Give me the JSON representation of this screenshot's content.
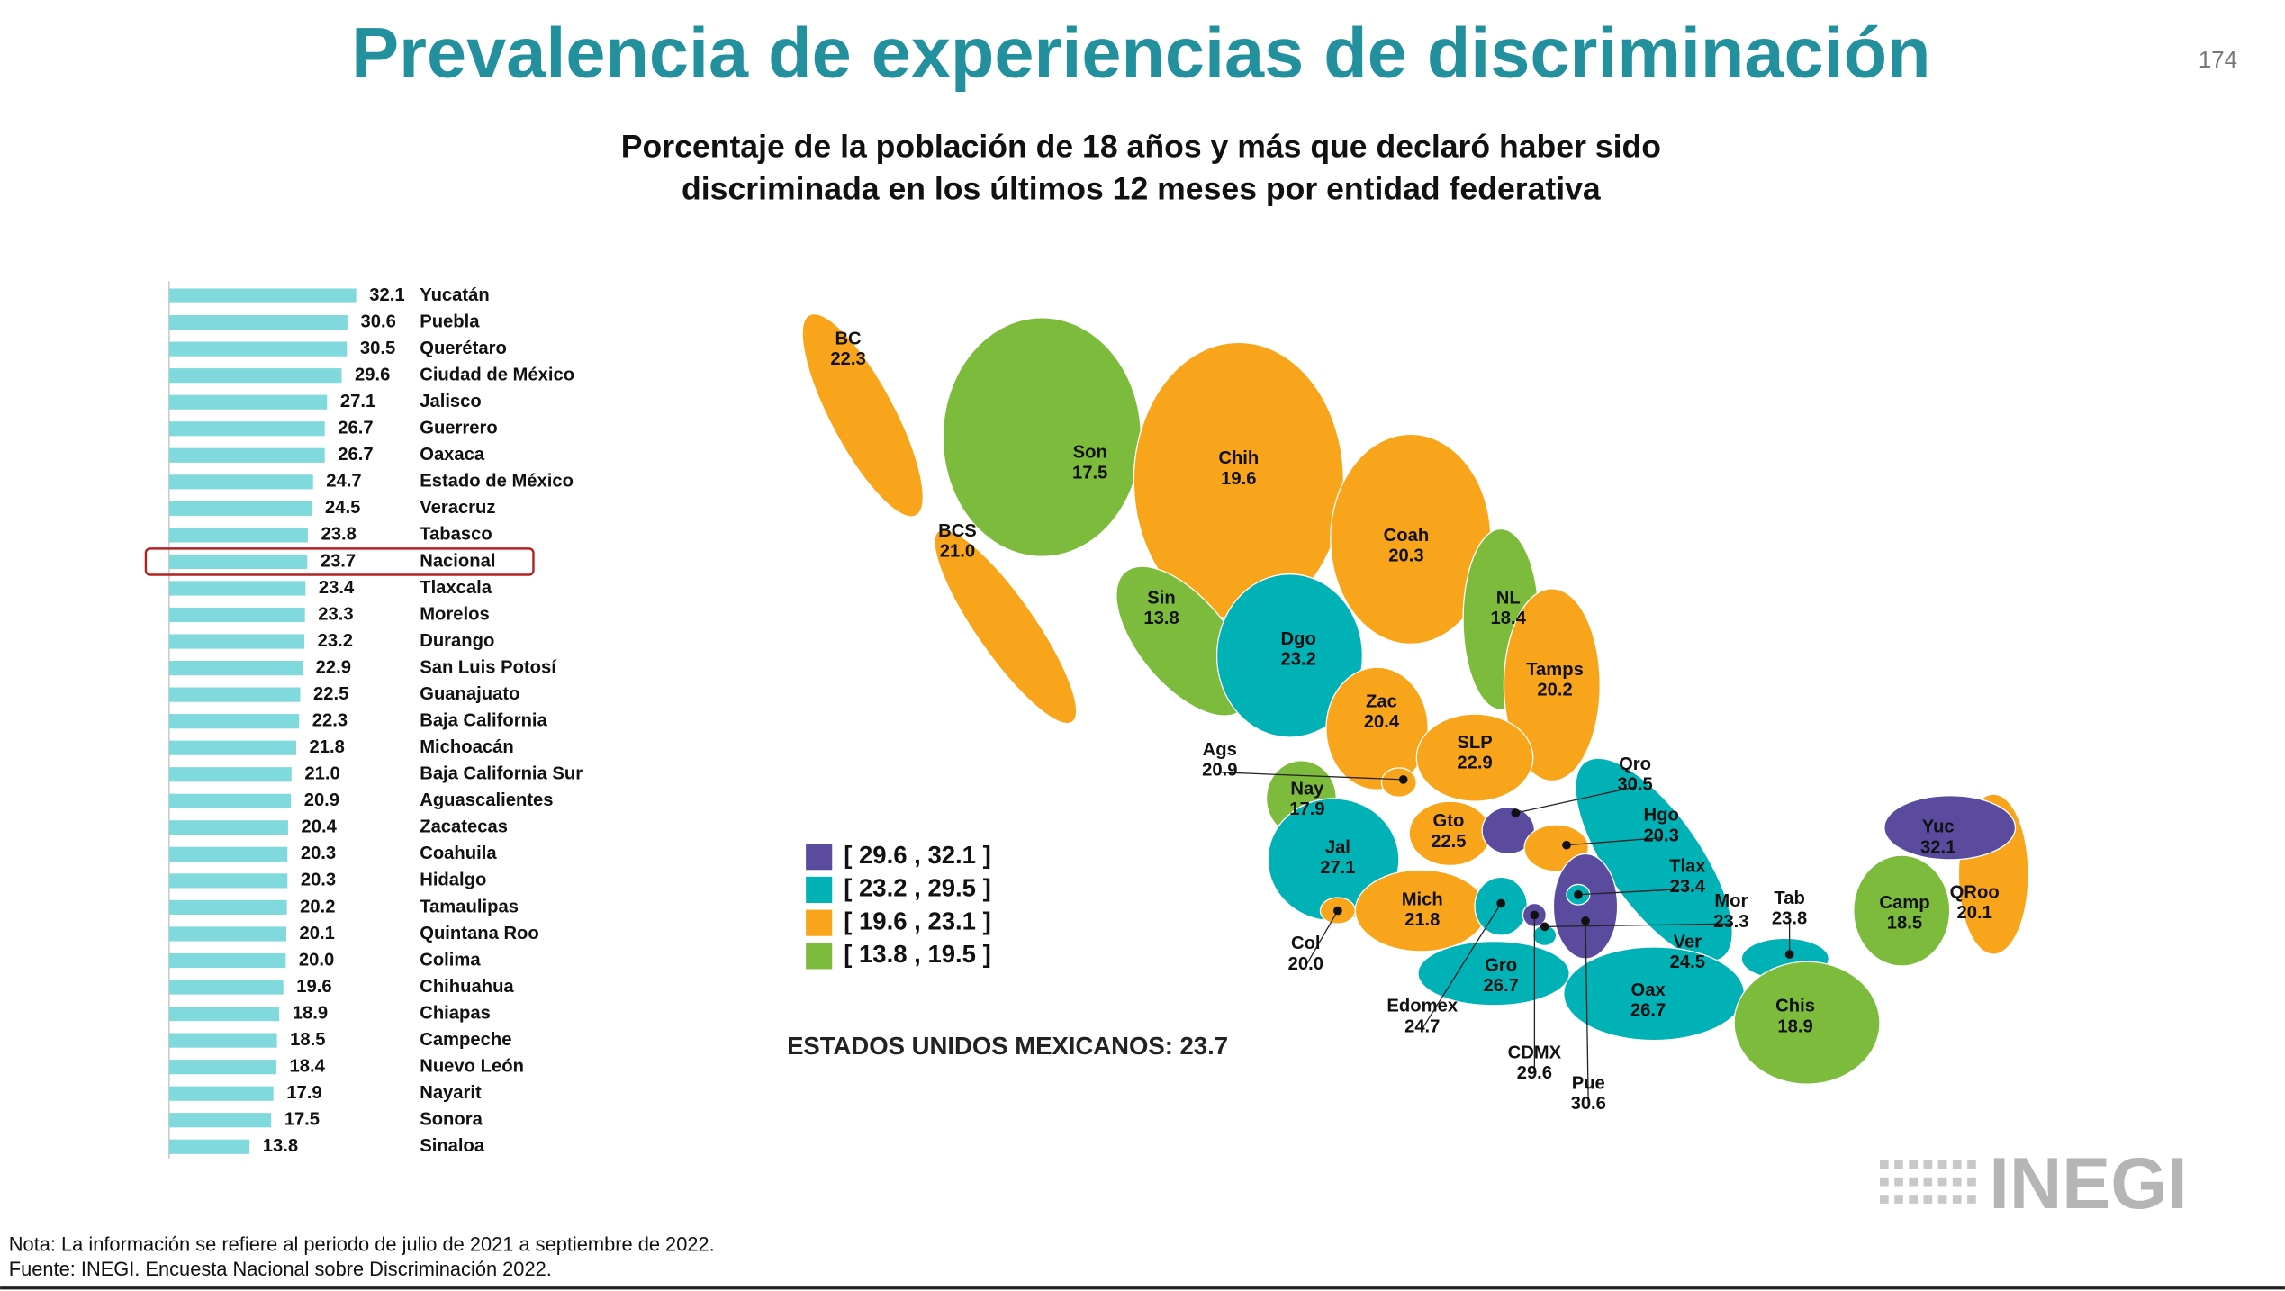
{
  "title": "Prevalencia de experiencias de discriminación",
  "page_number": "174",
  "subtitle": [
    "Porcentaje de la población de 18 años y más que declaró haber sido",
    "discriminada en los últimos 12 meses por entidad federativa"
  ],
  "chart_data": {
    "type": "bar",
    "orientation": "horizontal",
    "categories": [
      "Yucatán",
      "Puebla",
      "Querétaro",
      "Ciudad de México",
      "Jalisco",
      "Guerrero",
      "Oaxaca",
      "Estado de México",
      "Veracruz",
      "Tabasco",
      "Nacional",
      "Tlaxcala",
      "Morelos",
      "Durango",
      "San Luis Potosí",
      "Guanajuato",
      "Baja California",
      "Michoacán",
      "Baja California Sur",
      "Aguascalientes",
      "Zacatecas",
      "Coahuila",
      "Hidalgo",
      "Tamaulipas",
      "Quintana Roo",
      "Colima",
      "Chihuahua",
      "Chiapas",
      "Campeche",
      "Nuevo León",
      "Nayarit",
      "Sonora",
      "Sinaloa"
    ],
    "values": [
      32.1,
      30.6,
      30.5,
      29.6,
      27.1,
      26.7,
      26.7,
      24.7,
      24.5,
      23.8,
      23.7,
      23.4,
      23.3,
      23.2,
      22.9,
      22.5,
      22.3,
      21.8,
      21.0,
      20.9,
      20.4,
      20.3,
      20.3,
      20.2,
      20.1,
      20.0,
      19.6,
      18.9,
      18.5,
      18.4,
      17.9,
      17.5,
      13.8
    ],
    "value_labels": [
      "32.1",
      "30.6",
      "30.5",
      "29.6",
      "27.1",
      "26.7",
      "26.7",
      "24.7",
      "24.5",
      "23.8",
      "23.7",
      "23.4",
      "23.3",
      "23.2",
      "22.9",
      "22.5",
      "22.3",
      "21.8",
      "21.0",
      "20.9",
      "20.4",
      "20.3",
      "20.3",
      "20.2",
      "20.1",
      "20.0",
      "19.6",
      "18.9",
      "18.5",
      "18.4",
      "17.9",
      "17.5",
      "13.8"
    ],
    "color": "#80d9dc",
    "highlighted_category": "Nacional",
    "highlight_color": "#b22222"
  },
  "map": {
    "legend": [
      {
        "label": "[ 29.6 , 32.1 ]",
        "color": "#5b4b9e"
      },
      {
        "label": "[ 23.2 , 29.5 ]",
        "color": "#00b2b5"
      },
      {
        "label": "[ 19.6 , 23.1 ]",
        "color": "#f9a51b"
      },
      {
        "label": "[ 13.8 , 19.5 ]",
        "color": "#7dbb3c"
      }
    ],
    "states": [
      {
        "abbr": "BC",
        "value": "22.3",
        "color": "#f9a51b"
      },
      {
        "abbr": "BCS",
        "value": "21.0",
        "color": "#f9a51b"
      },
      {
        "abbr": "Son",
        "value": "17.5",
        "color": "#7dbb3c"
      },
      {
        "abbr": "Chih",
        "value": "19.6",
        "color": "#f9a51b"
      },
      {
        "abbr": "Coah",
        "value": "20.3",
        "color": "#f9a51b"
      },
      {
        "abbr": "NL",
        "value": "18.4",
        "color": "#7dbb3c"
      },
      {
        "abbr": "Tamps",
        "value": "20.2",
        "color": "#f9a51b"
      },
      {
        "abbr": "Sin",
        "value": "13.8",
        "color": "#7dbb3c"
      },
      {
        "abbr": "Dgo",
        "value": "23.2",
        "color": "#00b2b5"
      },
      {
        "abbr": "Zac",
        "value": "20.4",
        "color": "#f9a51b"
      },
      {
        "abbr": "SLP",
        "value": "22.9",
        "color": "#f9a51b"
      },
      {
        "abbr": "Nay",
        "value": "17.9",
        "color": "#7dbb3c"
      },
      {
        "abbr": "Ags",
        "value": "20.9",
        "color": "#f9a51b"
      },
      {
        "abbr": "Jal",
        "value": "27.1",
        "color": "#00b2b5"
      },
      {
        "abbr": "Gto",
        "value": "22.5",
        "color": "#f9a51b"
      },
      {
        "abbr": "Qro",
        "value": "30.5",
        "color": "#5b4b9e"
      },
      {
        "abbr": "Hgo",
        "value": "20.3",
        "color": "#f9a51b"
      },
      {
        "abbr": "Mich",
        "value": "21.8",
        "color": "#f9a51b"
      },
      {
        "abbr": "Col",
        "value": "20.0",
        "color": "#f9a51b"
      },
      {
        "abbr": "Ver",
        "value": "24.5",
        "color": "#00b2b5"
      },
      {
        "abbr": "Gro",
        "value": "26.7",
        "color": "#00b2b5"
      },
      {
        "abbr": "Oax",
        "value": "26.7",
        "color": "#00b2b5"
      },
      {
        "abbr": "Pue",
        "value": "30.6",
        "color": "#5b4b9e"
      },
      {
        "abbr": "Edomex",
        "value": "24.7",
        "color": "#00b2b5"
      },
      {
        "abbr": "CDMX",
        "value": "29.6",
        "color": "#5b4b9e"
      },
      {
        "abbr": "Mor",
        "value": "23.3",
        "color": "#00b2b5"
      },
      {
        "abbr": "Tlax",
        "value": "23.4",
        "color": "#00b2b5"
      },
      {
        "abbr": "Tab",
        "value": "23.8",
        "color": "#00b2b5"
      },
      {
        "abbr": "Chis",
        "value": "18.9",
        "color": "#7dbb3c"
      },
      {
        "abbr": "Camp",
        "value": "18.5",
        "color": "#7dbb3c"
      },
      {
        "abbr": "QRoo",
        "value": "20.1",
        "color": "#f9a51b"
      },
      {
        "abbr": "Yuc",
        "value": "32.1",
        "color": "#5b4b9e"
      }
    ],
    "national": "ESTADOS UNIDOS MEXICANOS:  23.7"
  },
  "notes": [
    "Nota: La información se refiere al periodo de julio de 2021 a septiembre de 2022.",
    "Fuente: INEGI. Encuesta Nacional sobre Discriminación 2022."
  ],
  "logo": "INEGI"
}
